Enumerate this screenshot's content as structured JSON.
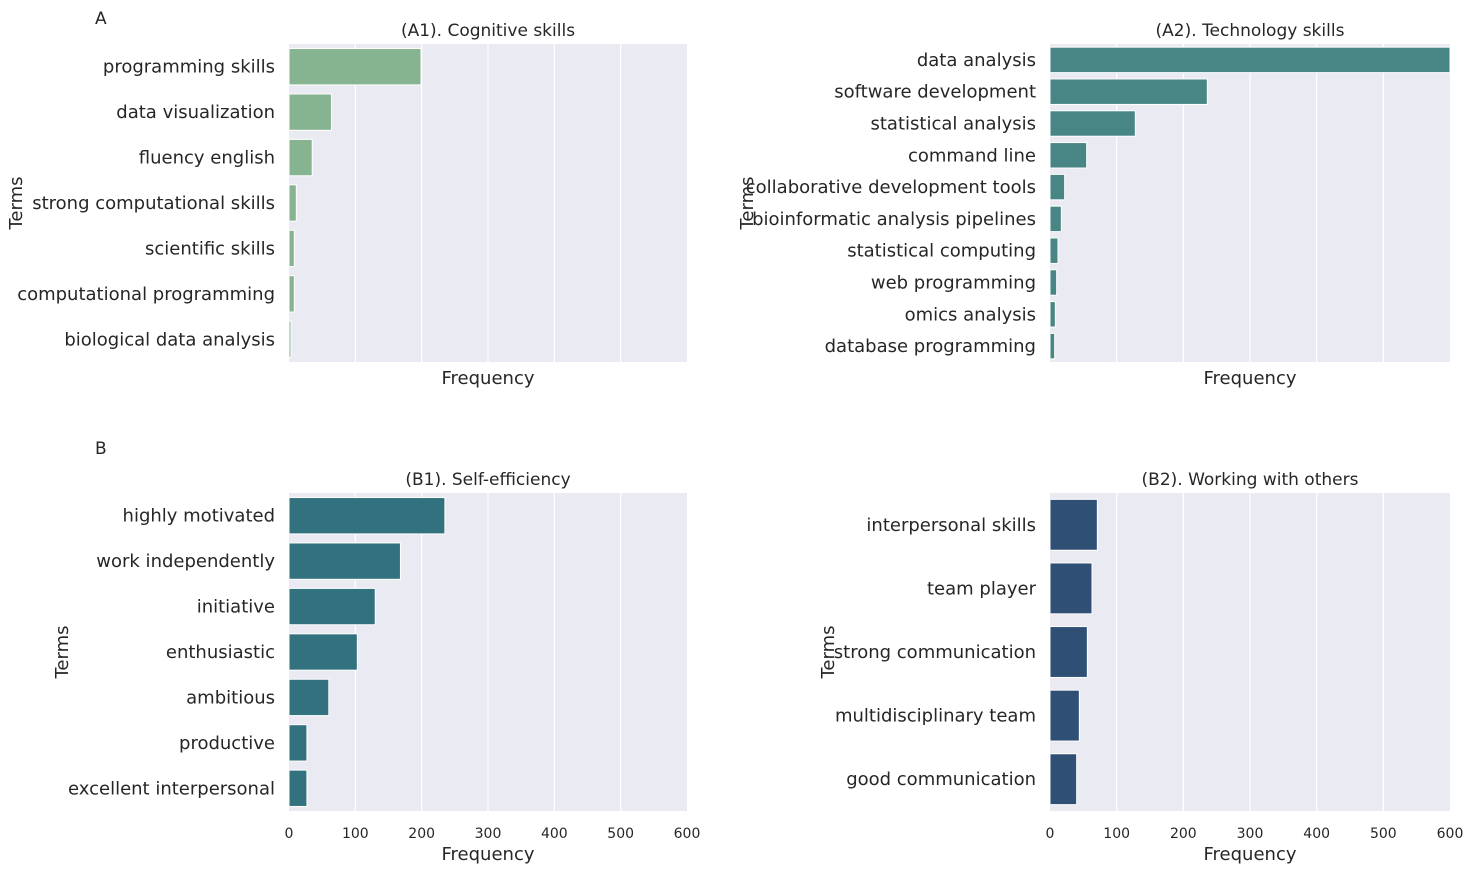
{
  "figure": {
    "panel_labels": [
      "A",
      "B"
    ]
  },
  "chart_data": [
    {
      "type": "bar",
      "orientation": "horizontal",
      "title": "(A1). Cognitive skills",
      "xlabel": "Frequency",
      "ylabel": "Terms",
      "xlim": [
        0,
        600
      ],
      "x_tick_labels_visible": false,
      "grid": true,
      "color": "#86b390",
      "categories": [
        "programming skills",
        "data visualization",
        "fluency english",
        "strong computational skills",
        "scientific skills",
        "computational programming",
        "biological data analysis"
      ],
      "values": [
        199,
        64,
        35,
        11,
        8,
        8,
        3
      ]
    },
    {
      "type": "bar",
      "orientation": "horizontal",
      "title": "(A2). Technology skills",
      "xlabel": "Frequency",
      "ylabel": "Terms",
      "xlim": [
        0,
        600
      ],
      "x_tick_labels_visible": false,
      "grid": true,
      "color": "#478685",
      "categories": [
        "data analysis",
        "software development",
        "statistical analysis",
        "command line",
        "collaborative development tools",
        "bioinformatic analysis pipelines",
        "statistical computing",
        "web programming",
        "omics analysis",
        "database programming"
      ],
      "values": [
        602,
        236,
        128,
        55,
        22,
        17,
        12,
        10,
        8,
        7
      ]
    },
    {
      "type": "bar",
      "orientation": "horizontal",
      "title": "(B1). Self-efficiency",
      "xlabel": "Frequency",
      "ylabel": "Terms",
      "xlim": [
        0,
        600
      ],
      "xticks": [
        0,
        100,
        200,
        300,
        400,
        500,
        600
      ],
      "x_tick_labels_visible": true,
      "grid": true,
      "color": "#32727e",
      "categories": [
        "highly motivated",
        "work independently",
        "initiative",
        "enthusiastic",
        "ambitious",
        "productive",
        "excellent interpersonal"
      ],
      "values": [
        235,
        168,
        130,
        103,
        60,
        27,
        27
      ]
    },
    {
      "type": "bar",
      "orientation": "horizontal",
      "title": "(B2). Working with others",
      "xlabel": "Frequency",
      "ylabel": "Terms",
      "xlim": [
        0,
        600
      ],
      "xticks": [
        0,
        100,
        200,
        300,
        400,
        500,
        600
      ],
      "x_tick_labels_visible": true,
      "grid": true,
      "color": "#2f4f74",
      "categories": [
        "interpersonal skills",
        "team player",
        "strong communication",
        "multidisciplinary team",
        "good communication"
      ],
      "values": [
        71,
        63,
        56,
        44,
        40
      ]
    }
  ]
}
